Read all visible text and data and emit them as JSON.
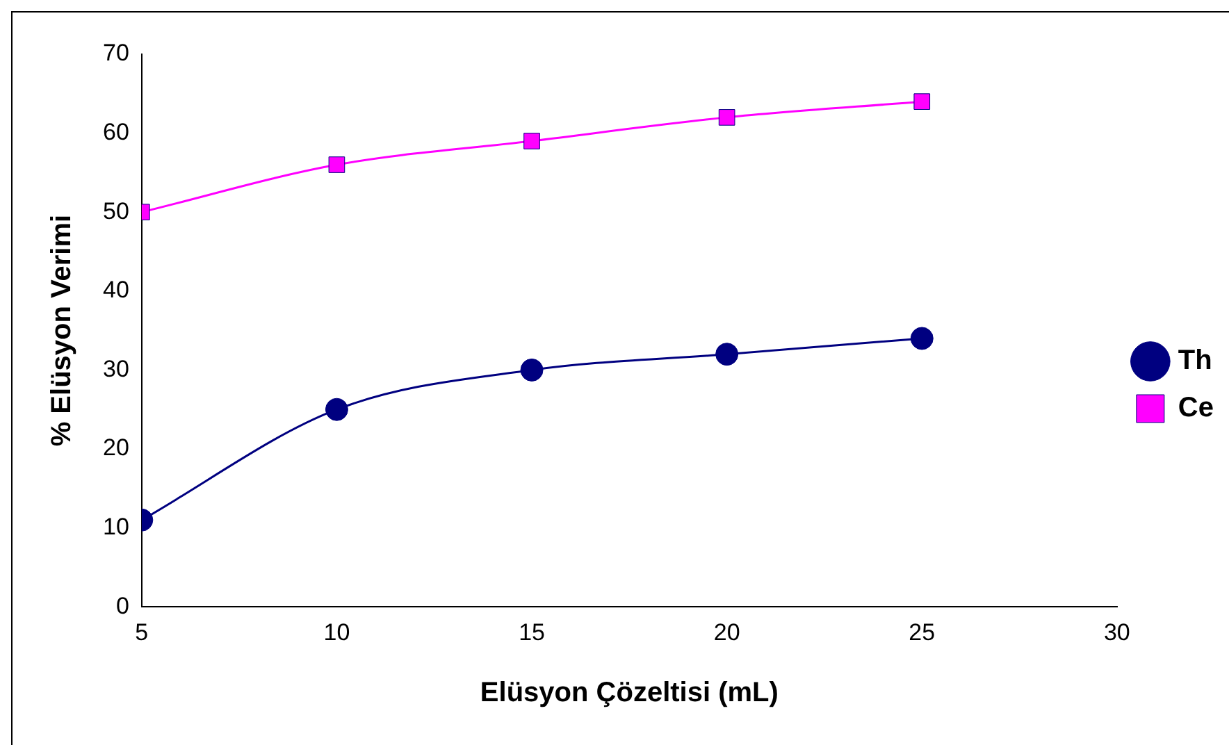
{
  "chart_data": {
    "type": "line",
    "xlabel": "Elüsyon Çözeltisi (mL)",
    "ylabel": "% Elüsyon Verimi",
    "x": [
      5,
      10,
      15,
      20,
      25
    ],
    "series": [
      {
        "name": "Th",
        "color": "#000080",
        "values": [
          11,
          25,
          30,
          32,
          34
        ],
        "marker": "circle"
      },
      {
        "name": "Ce",
        "color": "#ff00ff",
        "values": [
          50,
          56,
          59,
          62,
          64
        ],
        "marker": "square"
      }
    ],
    "xlim": [
      5,
      30
    ],
    "xticks": [
      5,
      10,
      15,
      20,
      25,
      30
    ],
    "ylim": [
      0,
      70
    ],
    "yticks": [
      0,
      10,
      20,
      30,
      40,
      50,
      60,
      70
    ],
    "grid": false,
    "legend": "right"
  }
}
